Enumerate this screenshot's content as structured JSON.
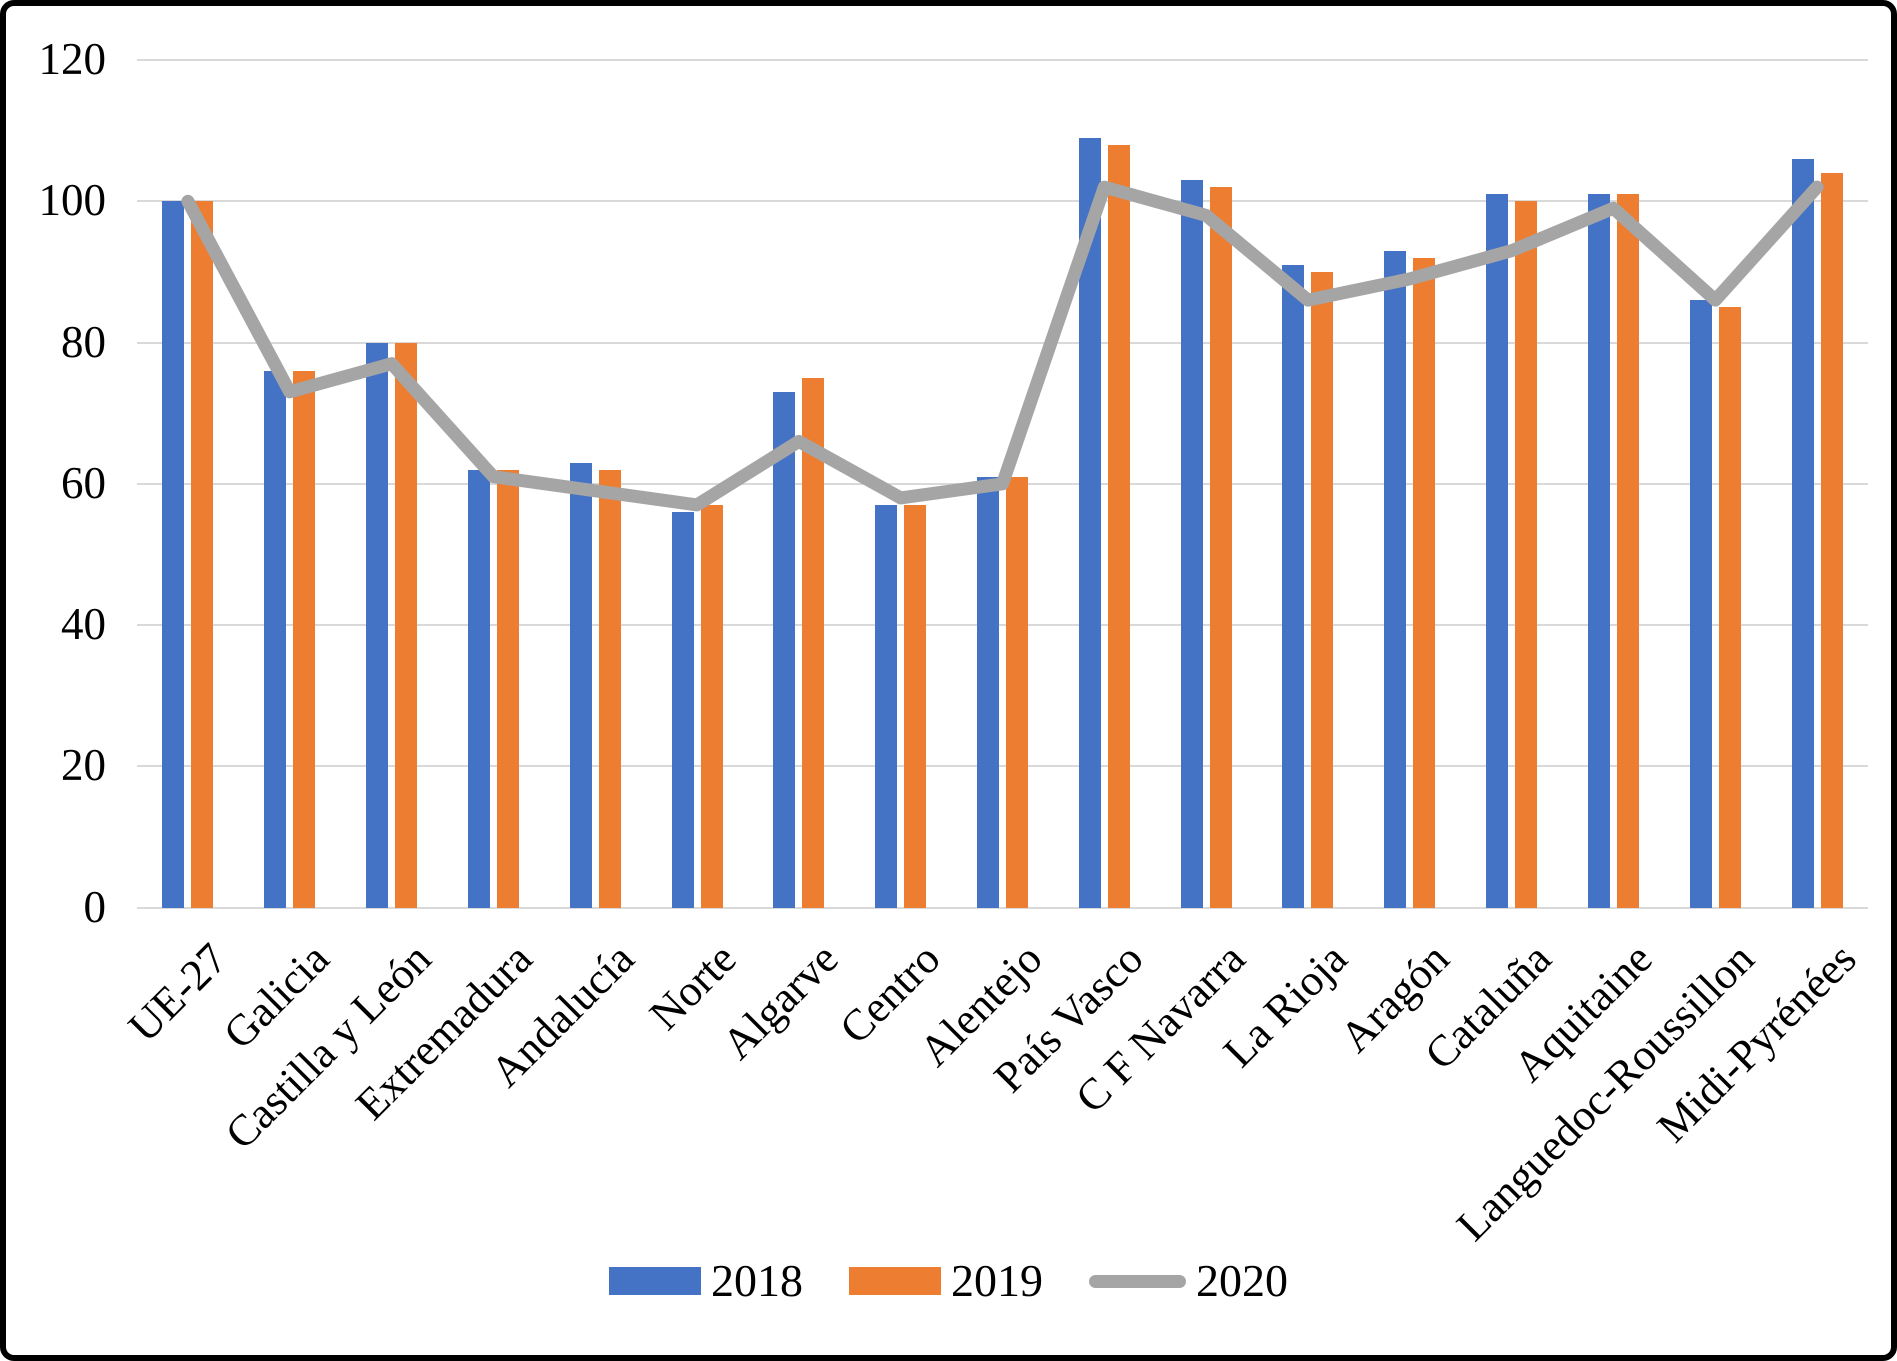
{
  "chart_data": {
    "type": "bar",
    "title": "",
    "xlabel": "",
    "ylabel": "",
    "categories": [
      "UE-27",
      "Galicia",
      "Castilla y León",
      "Extremadura",
      "Andalucía",
      "Norte",
      "Algarve",
      "Centro",
      "Alentejo",
      "País Vasco",
      "C F Navarra",
      "La Rioja",
      "Aragón",
      "Cataluña",
      "Aquitaine",
      "Languedoc-Roussillon",
      "Midi-Pyrénées"
    ],
    "series": [
      {
        "name": "2018",
        "type": "bar",
        "color": "#4472C4",
        "values": [
          100,
          76,
          80,
          62,
          63,
          56,
          73,
          57,
          61,
          109,
          103,
          91,
          93,
          101,
          101,
          86,
          106
        ]
      },
      {
        "name": "2019",
        "type": "bar",
        "color": "#ED7D31",
        "values": [
          100,
          76,
          80,
          62,
          62,
          57,
          75,
          57,
          61,
          108,
          102,
          90,
          92,
          100,
          101,
          85,
          104
        ]
      },
      {
        "name": "2020",
        "type": "line",
        "color": "#A5A5A5",
        "values": [
          100,
          73,
          77,
          61,
          59,
          57,
          66,
          58,
          60,
          102,
          98,
          86,
          89,
          93,
          99,
          86,
          102
        ]
      }
    ],
    "ylim": [
      0,
      120
    ],
    "yticks": [
      0,
      20,
      40,
      60,
      80,
      100,
      120
    ],
    "grid": true,
    "gridline_color": "#d9d9d9",
    "legend_position": "bottom"
  }
}
